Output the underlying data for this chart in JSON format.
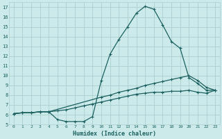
{
  "xlabel": "Humidex (Indice chaleur)",
  "bg_color": "#cdeaea",
  "grid_color": "#aacece",
  "line_color": "#1a6060",
  "xlim": [
    -0.5,
    23.5
  ],
  "ylim": [
    5,
    17.5
  ],
  "xticks": [
    0,
    1,
    2,
    3,
    4,
    5,
    6,
    7,
    8,
    9,
    10,
    11,
    12,
    13,
    14,
    15,
    16,
    17,
    18,
    19,
    20,
    21,
    22,
    23
  ],
  "yticks": [
    5,
    6,
    7,
    8,
    9,
    10,
    11,
    12,
    13,
    14,
    15,
    16,
    17
  ],
  "curve1_x": [
    0,
    1,
    2,
    3,
    4,
    5,
    6,
    7,
    8,
    9,
    10,
    11,
    12,
    13,
    14,
    15,
    16,
    17,
    18,
    19,
    20,
    21,
    22,
    23
  ],
  "curve1_y": [
    6.1,
    6.2,
    6.2,
    6.3,
    6.3,
    5.5,
    5.3,
    5.3,
    5.3,
    5.8,
    9.5,
    12.2,
    13.7,
    15.0,
    16.4,
    17.1,
    16.8,
    15.2,
    13.5,
    12.8,
    9.8,
    9.2,
    8.5,
    8.5
  ],
  "curve2_x": [
    0,
    1,
    2,
    3,
    4,
    10,
    11,
    12,
    13,
    14,
    15,
    16,
    17,
    18,
    19,
    20,
    21,
    22,
    23
  ],
  "curve2_y": [
    6.1,
    6.2,
    6.2,
    6.3,
    6.3,
    7.8,
    8.0,
    8.3,
    8.5,
    8.7,
    9.0,
    9.2,
    9.4,
    9.6,
    9.8,
    10.0,
    9.5,
    8.8,
    8.5
  ],
  "curve3_x": [
    0,
    1,
    2,
    3,
    4,
    5,
    6,
    7,
    8,
    9,
    10,
    11,
    12,
    13,
    14,
    15,
    16,
    17,
    18,
    19,
    20,
    21,
    22,
    23
  ],
  "curve3_y": [
    6.1,
    6.2,
    6.2,
    6.3,
    6.3,
    6.4,
    6.5,
    6.7,
    6.9,
    7.1,
    7.3,
    7.5,
    7.7,
    7.9,
    8.1,
    8.2,
    8.3,
    8.3,
    8.4,
    8.4,
    8.5,
    8.3,
    8.2,
    8.5
  ]
}
